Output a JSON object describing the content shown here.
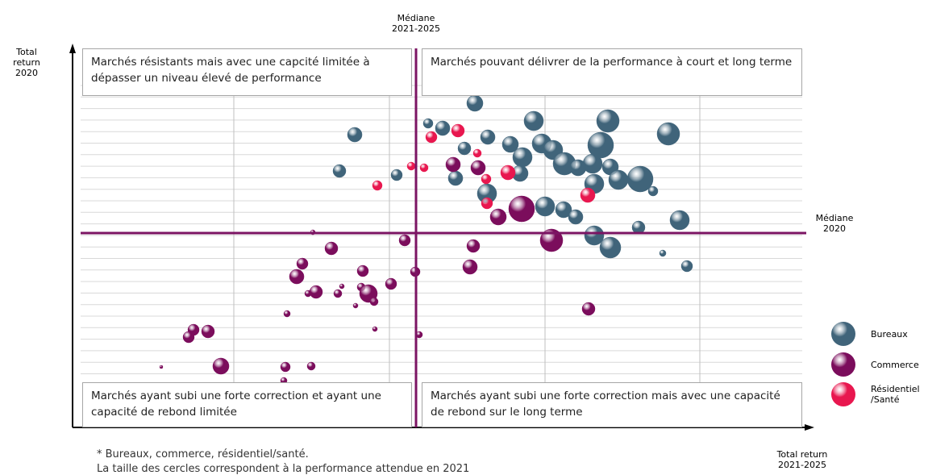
{
  "chart_data": {
    "type": "bubble",
    "x_label": "Total return\n2021-2025",
    "y_label": "Total return\n2020",
    "median_x_label": "Médiane\n2021-2025",
    "median_y_label": "Médiane\n2020",
    "median_x": 426,
    "median_y": 241,
    "median_color": "#7b1463",
    "xlim": [
      0,
      920
    ],
    "ylim": [
      0,
      470
    ],
    "grid": true,
    "quadrants": [
      "Marchés résistants mais avec une capcité limitée à dépasser un niveau élevé de performance",
      "Marchés pouvant délivrer de la performance à court et long terme",
      "Marchés ayant subi une forte correction et ayant une capacité de rebond limitée",
      "Marchés ayant subi une forte correction mais avec une capacité de rebond sur le long terme"
    ],
    "footnotes": [
      "* Bureaux, commerce, résidentiel/santé.",
      "La taille des cercles correspondent à la performance attendue en 2021"
    ],
    "series": [
      {
        "name": "Bureaux",
        "color": "#40647a",
        "x": [
          499,
          572,
          664,
          739,
          350,
          459,
          441,
          486,
          515,
          543,
          582,
          596,
          558,
          655,
          610,
          627,
          645,
          667,
          555,
          475,
          331,
          402,
          677,
          704,
          720,
          647,
          514,
          586,
          609,
          624,
          753,
          647,
          667,
          702,
          732,
          762
        ],
        "y": [
          402,
          380,
          380,
          364,
          363,
          371,
          377,
          346,
          360,
          351,
          352,
          344,
          335,
          350,
          327,
          322,
          327,
          323,
          315,
          309,
          318,
          313,
          307,
          308,
          293,
          302,
          290,
          274,
          270,
          261,
          257,
          238,
          223,
          248,
          216,
          200
        ],
        "sizes": [
          10,
          12,
          14,
          14,
          9,
          9,
          6,
          8,
          9,
          10,
          12,
          12,
          12,
          16,
          14,
          10,
          12,
          10,
          10,
          9,
          8,
          7,
          12,
          16,
          6,
          12,
          12,
          12,
          10,
          9,
          12,
          12,
          13,
          8,
          4,
          7
        ]
      },
      {
        "name": "Commerce",
        "color": "#7b0d5c",
        "x": [
          557,
          528,
          594,
          497,
          493,
          412,
          425,
          321,
          298,
          285,
          278,
          360,
          358,
          334,
          302,
          292,
          329,
          367,
          374,
          395,
          351,
          266,
          640,
          375,
          430,
          150,
          168,
          144,
          184,
          110,
          264,
          296,
          262,
          472,
          503
        ],
        "y": [
          271,
          261,
          232,
          225,
          199,
          232,
          193,
          222,
          242,
          203,
          187,
          194,
          174,
          175,
          168,
          166,
          166,
          166,
          156,
          178,
          151,
          141,
          147,
          122,
          115,
          121,
          119,
          112,
          76,
          75,
          75,
          76,
          58,
          326,
          322
        ],
        "sizes": [
          16,
          10,
          14,
          8,
          9,
          7,
          6,
          8,
          3,
          7,
          9,
          7,
          5,
          3,
          8,
          4,
          5,
          11,
          5,
          7,
          3,
          4,
          8,
          3,
          4,
          7,
          8,
          7,
          10,
          2,
          6,
          5,
          4,
          9,
          9
        ]
      },
      {
        "name": "Résidentiel\n/Santé",
        "color": "#e8174f",
        "x": [
          478,
          445,
          502,
          420,
          436,
          540,
          513,
          378,
          639,
          514
        ],
        "y": [
          368,
          360,
          340,
          324,
          322,
          316,
          308,
          300,
          288,
          278
        ],
        "sizes": [
          8,
          7,
          5,
          5,
          5,
          9,
          6,
          6,
          9,
          7
        ]
      }
    ]
  }
}
